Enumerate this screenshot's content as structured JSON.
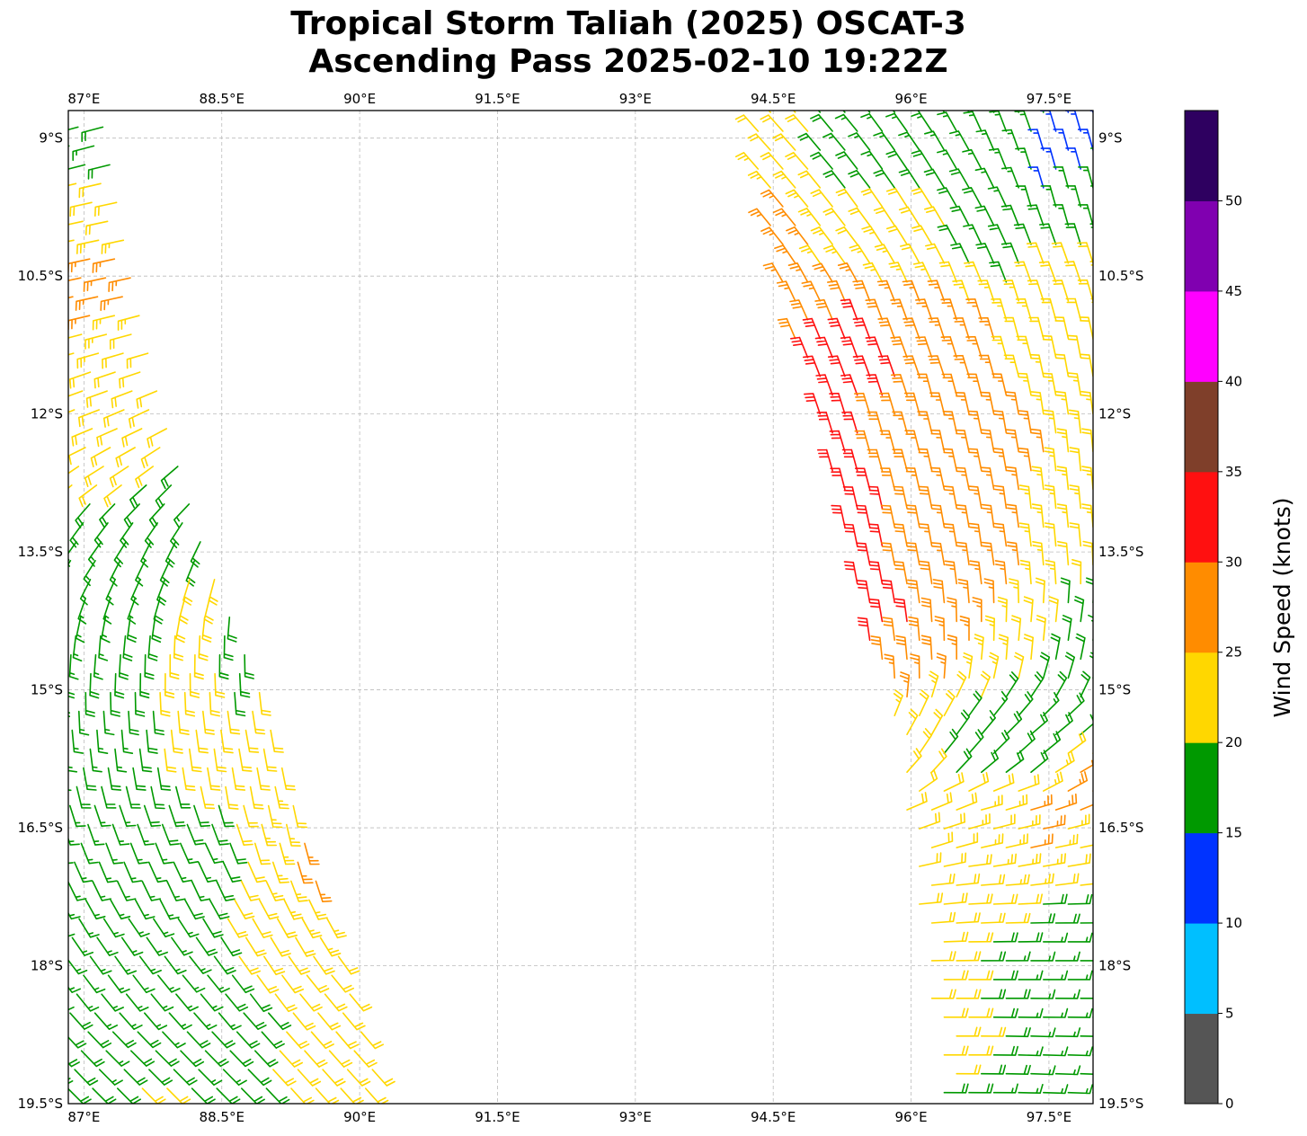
{
  "chart_data": {
    "type": "wind-barb-map",
    "title_line1": "Tropical Storm Taliah (2025) OSCAT-3",
    "title_line2": "Ascending Pass 2025-02-10 19:22Z",
    "xlim_lon_E": [
      86.83,
      97.98
    ],
    "ylim_lat_S": [
      8.7,
      19.5
    ],
    "grid": true,
    "lon_ticks": [
      87,
      88.5,
      90,
      91.5,
      93,
      94.5,
      96,
      97.5
    ],
    "lon_tick_labels": [
      "87°E",
      "88.5°E",
      "90°E",
      "91.5°E",
      "93°E",
      "94.5°E",
      "96°E",
      "97.5°E"
    ],
    "lat_ticks": [
      9,
      10.5,
      12,
      13.5,
      15,
      16.5,
      18,
      19.5
    ],
    "lat_tick_labels": [
      "9°S",
      "10.5°S",
      "12°S",
      "13.5°S",
      "15°S",
      "16.5°S",
      "18°S",
      "19.5°S"
    ],
    "colorbar": {
      "label": "Wind Speed (knots)",
      "bounds": [
        0,
        5,
        10,
        15,
        20,
        25,
        30,
        35,
        40,
        45,
        50,
        55
      ],
      "tick_values": [
        0,
        5,
        10,
        15,
        20,
        25,
        30,
        35,
        40,
        45,
        50
      ],
      "tick_labels": [
        "0",
        "5",
        "10",
        "15",
        "20",
        "25",
        "30",
        "35",
        "40",
        "45",
        "50"
      ],
      "colors": [
        "#555555",
        "#00BFFF",
        "#0033FF",
        "#009900",
        "#FFD700",
        "#FF8C00",
        "#FF1010",
        "#7F3F2A",
        "#FF00FF",
        "#8000B0",
        "#2E0060"
      ]
    },
    "swaths": [
      {
        "name": "west-swath",
        "east_edge": [
          [
            87.25,
            8.85
          ],
          [
            87.55,
            10.5
          ],
          [
            87.9,
            12.0
          ],
          [
            88.35,
            13.5
          ],
          [
            88.95,
            15.0
          ],
          [
            89.4,
            16.5
          ],
          [
            89.85,
            18.0
          ],
          [
            90.3,
            19.5
          ]
        ],
        "west_edge": [
          [
            86.5,
            8.85
          ],
          [
            86.5,
            19.5
          ]
        ]
      },
      {
        "name": "east-swath",
        "west_edge": [
          [
            94.25,
            8.7
          ],
          [
            94.4,
            10.0
          ],
          [
            94.8,
            11.5
          ],
          [
            95.2,
            13.0
          ],
          [
            95.55,
            14.5
          ],
          [
            95.8,
            15.5
          ],
          [
            95.95,
            16.5
          ],
          [
            96.15,
            18.0
          ],
          [
            96.35,
            19.5
          ]
        ],
        "east_edge": [
          [
            98.3,
            8.7
          ],
          [
            98.3,
            19.5
          ]
        ]
      }
    ],
    "wind_samples": [
      [
        87.0,
        9.0,
        17,
        255
      ],
      [
        87.3,
        9.8,
        22,
        258
      ],
      [
        87.2,
        10.6,
        27,
        258
      ],
      [
        87.6,
        11.2,
        22,
        255
      ],
      [
        87.2,
        12.0,
        22,
        250
      ],
      [
        87.8,
        12.0,
        22,
        245
      ],
      [
        87.4,
        12.6,
        22,
        235
      ],
      [
        88.1,
        12.8,
        17,
        225
      ],
      [
        87.0,
        13.4,
        17,
        215
      ],
      [
        87.8,
        13.5,
        17,
        205
      ],
      [
        88.5,
        13.8,
        22,
        195
      ],
      [
        87.2,
        14.5,
        17,
        185
      ],
      [
        88.0,
        14.7,
        22,
        180
      ],
      [
        88.8,
        14.5,
        17,
        178
      ],
      [
        87.3,
        15.4,
        17,
        175
      ],
      [
        88.2,
        15.6,
        22,
        172
      ],
      [
        89.0,
        15.5,
        22,
        170
      ],
      [
        89.3,
        16.2,
        22,
        168
      ],
      [
        89.5,
        16.7,
        27,
        165
      ],
      [
        87.3,
        16.5,
        17,
        160
      ],
      [
        88.2,
        16.8,
        17,
        155
      ],
      [
        89.0,
        17.5,
        22,
        150
      ],
      [
        87.3,
        17.8,
        17,
        145
      ],
      [
        88.2,
        18.2,
        17,
        140
      ],
      [
        89.6,
        18.3,
        22,
        140
      ],
      [
        87.3,
        19.0,
        17,
        135
      ],
      [
        88.3,
        19.2,
        17,
        135
      ],
      [
        89.8,
        19.2,
        22,
        138
      ],
      [
        87.8,
        19.45,
        22,
        135
      ],
      [
        94.6,
        9.0,
        22,
        318
      ],
      [
        95.3,
        9.0,
        17,
        320
      ],
      [
        95.8,
        9.2,
        17,
        325
      ],
      [
        96.6,
        9.3,
        17,
        330
      ],
      [
        97.2,
        9.1,
        17,
        340
      ],
      [
        97.6,
        9.2,
        12,
        345
      ],
      [
        97.9,
        9.7,
        17,
        345
      ],
      [
        94.6,
        10.0,
        27,
        320
      ],
      [
        95.2,
        10.0,
        22,
        322
      ],
      [
        96.1,
        10.0,
        22,
        328
      ],
      [
        96.8,
        10.2,
        17,
        335
      ],
      [
        97.5,
        10.5,
        22,
        340
      ],
      [
        94.8,
        10.8,
        27,
        335
      ],
      [
        95.05,
        11.4,
        32,
        338
      ],
      [
        95.5,
        11.5,
        32,
        340
      ],
      [
        96.0,
        11.0,
        27,
        340
      ],
      [
        96.7,
        11.2,
        27,
        343
      ],
      [
        97.2,
        11.2,
        22,
        345
      ],
      [
        97.8,
        11.5,
        22,
        350
      ],
      [
        95.25,
        12.3,
        32,
        343
      ],
      [
        95.8,
        12.3,
        27,
        345
      ],
      [
        96.5,
        12.5,
        27,
        348
      ],
      [
        97.2,
        12.3,
        27,
        350
      ],
      [
        97.8,
        12.5,
        22,
        355
      ],
      [
        95.5,
        13.3,
        32,
        348
      ],
      [
        96.2,
        13.5,
        27,
        350
      ],
      [
        97.0,
        13.5,
        27,
        352
      ],
      [
        97.6,
        13.5,
        22,
        355
      ],
      [
        95.7,
        14.2,
        32,
        350
      ],
      [
        95.9,
        14.8,
        27,
        355
      ],
      [
        96.5,
        14.5,
        27,
        0
      ],
      [
        97.3,
        14.5,
        22,
        5
      ],
      [
        97.9,
        14.5,
        17,
        10
      ],
      [
        96.0,
        15.5,
        22,
        30
      ],
      [
        96.7,
        15.5,
        17,
        40
      ],
      [
        97.5,
        15.5,
        17,
        50
      ],
      [
        97.9,
        16.0,
        27,
        60
      ],
      [
        96.1,
        16.5,
        22,
        70
      ],
      [
        96.9,
        16.5,
        22,
        75
      ],
      [
        97.3,
        16.7,
        27,
        78
      ],
      [
        97.8,
        16.8,
        22,
        80
      ],
      [
        96.2,
        17.3,
        22,
        85
      ],
      [
        97.0,
        17.3,
        22,
        88
      ],
      [
        97.8,
        17.5,
        17,
        90
      ],
      [
        96.4,
        18.2,
        22,
        90
      ],
      [
        97.0,
        18.1,
        17,
        90
      ],
      [
        97.6,
        18.3,
        17,
        90
      ],
      [
        96.6,
        19.0,
        22,
        90
      ],
      [
        97.2,
        19.0,
        17,
        92
      ],
      [
        97.8,
        19.3,
        17,
        92
      ],
      [
        96.8,
        19.4,
        17,
        90
      ]
    ]
  }
}
